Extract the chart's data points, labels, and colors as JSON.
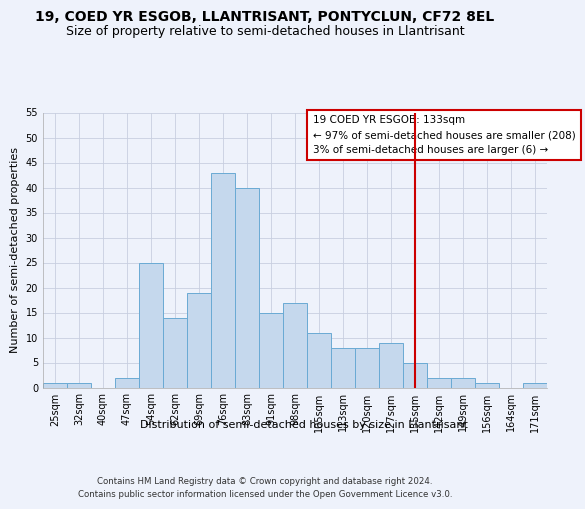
{
  "title": "19, COED YR ESGOB, LLANTRISANT, PONTYCLUN, CF72 8EL",
  "subtitle": "Size of property relative to semi-detached houses in Llantrisant",
  "xlabel": "Distribution of semi-detached houses by size in Llantrisant",
  "ylabel": "Number of semi-detached properties",
  "footer1": "Contains HM Land Registry data © Crown copyright and database right 2024.",
  "footer2": "Contains public sector information licensed under the Open Government Licence v3.0.",
  "categories": [
    "25sqm",
    "32sqm",
    "40sqm",
    "47sqm",
    "54sqm",
    "62sqm",
    "69sqm",
    "76sqm",
    "83sqm",
    "91sqm",
    "98sqm",
    "105sqm",
    "113sqm",
    "120sqm",
    "127sqm",
    "135sqm",
    "142sqm",
    "149sqm",
    "156sqm",
    "164sqm",
    "171sqm"
  ],
  "values": [
    1,
    1,
    0,
    2,
    25,
    14,
    19,
    43,
    40,
    15,
    17,
    11,
    8,
    8,
    9,
    5,
    2,
    2,
    1,
    0,
    1
  ],
  "bar_color": "#c5d8ed",
  "bar_edge_color": "#6aaad4",
  "background_color": "#eef2fb",
  "grid_color": "#c8cfe0",
  "vline_x_index": 15,
  "vline_color": "#cc0000",
  "ylim": [
    0,
    55
  ],
  "yticks": [
    0,
    5,
    10,
    15,
    20,
    25,
    30,
    35,
    40,
    45,
    50,
    55
  ],
  "legend_title": "19 COED YR ESGOB: 133sqm",
  "legend_line1": "← 97% of semi-detached houses are smaller (208)",
  "legend_line2": "3% of semi-detached houses are larger (6) →",
  "legend_edge_color": "#cc0000",
  "title_fontsize": 10,
  "subtitle_fontsize": 9,
  "axis_label_fontsize": 8,
  "tick_fontsize": 7,
  "ylabel_fontsize": 8,
  "legend_fontsize": 7.5
}
